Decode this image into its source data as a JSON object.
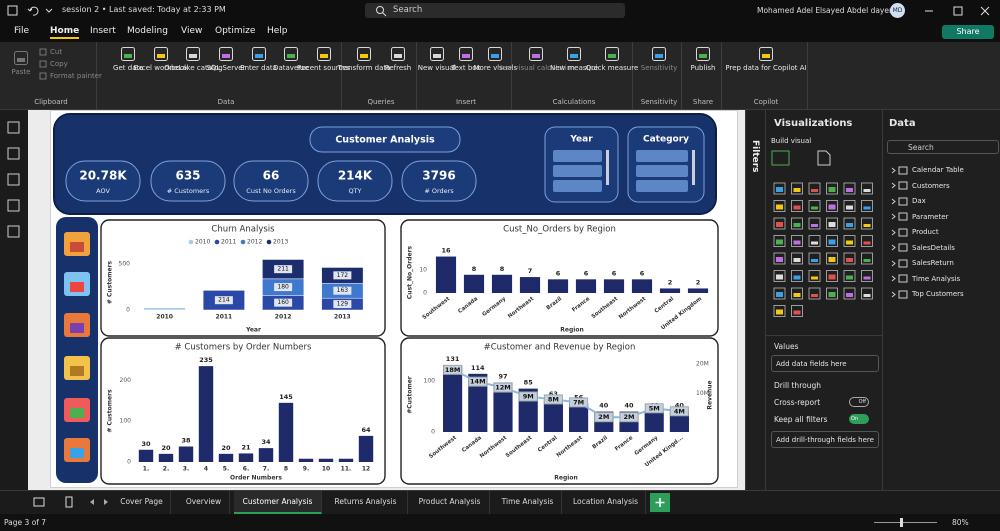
{
  "titlebar": {
    "session": "session 2 • Last saved: Today at 2:33 PM",
    "search": "Search",
    "user": "Mohamed Adel Elsayed Abdel dayem",
    "initials": "MD"
  },
  "menu": {
    "items": [
      "File",
      "Home",
      "Insert",
      "Modeling",
      "View",
      "Optimize",
      "Help"
    ],
    "share": "Share"
  },
  "ribbon": {
    "groups": [
      {
        "label": "Clipboard",
        "buttons": [
          "Paste",
          "Cut",
          "Copy",
          "Format painter"
        ]
      },
      {
        "label": "Data",
        "buttons": [
          "Get data",
          "Excel workbook",
          "OneLake catalog",
          "SQL Server",
          "Enter data",
          "Dataverse",
          "Recent sources"
        ]
      },
      {
        "label": "Queries",
        "buttons": [
          "Transform data",
          "Refresh"
        ]
      },
      {
        "label": "Insert",
        "buttons": [
          "New visual",
          "Text box",
          "More visuals"
        ]
      },
      {
        "label": "Calculations",
        "buttons": [
          "New visual calculation",
          "New measure",
          "Quick measure"
        ]
      },
      {
        "label": "Sensitivity",
        "buttons": [
          "Sensitivity"
        ]
      },
      {
        "label": "Share",
        "buttons": [
          "Publish"
        ]
      },
      {
        "label": "Copilot",
        "buttons": [
          "Prep data for Copilot AI"
        ]
      }
    ]
  },
  "report": {
    "title": "Customer Analysis",
    "kpis": [
      {
        "value": "20.78K",
        "label": "AOV"
      },
      {
        "value": "635",
        "label": "# Customers"
      },
      {
        "value": "66",
        "label": "Cust No Orders"
      },
      {
        "value": "214K",
        "label": "QTY"
      },
      {
        "value": "3796",
        "label": "# Orders"
      }
    ],
    "slicers": [
      "Year",
      "Category"
    ]
  },
  "chart_data": [
    {
      "type": "bar",
      "title": "Churn Analysis",
      "x_label": "Year",
      "y_label": "# Customers",
      "categories": [
        "2010",
        "2011",
        "2012",
        "2013"
      ],
      "series": [
        {
          "name": "2010",
          "color": "#a9c9ee",
          "values": [
            25,
            null,
            null,
            null
          ]
        },
        {
          "name": "2011",
          "color": "#2a48a6",
          "values": [
            null,
            214,
            160,
            129
          ]
        },
        {
          "name": "2012",
          "color": "#3f78cf",
          "values": [
            null,
            null,
            180,
            163
          ]
        },
        {
          "name": "2013",
          "color": "#1c2d6e",
          "values": [
            null,
            null,
            211,
            172
          ]
        }
      ],
      "ylim": [
        0,
        600
      ],
      "yticks": [
        0,
        500
      ],
      "grid": false
    },
    {
      "type": "bar",
      "title": "Cust_No_Orders by Region",
      "x_label": "Region",
      "y_label": "Cust_No_Orders",
      "categories": [
        "Southwest",
        "Canada",
        "Germany",
        "Northeast",
        "Brazil",
        "France",
        "Southeast",
        "Northwest",
        "Central",
        "United Kingdom"
      ],
      "values": [
        16,
        8,
        8,
        7,
        6,
        6,
        6,
        6,
        2,
        2
      ],
      "color": "#1f2a6b",
      "ylim": [
        0,
        18
      ],
      "yticks": [
        0,
        10
      ],
      "grid": false
    },
    {
      "type": "bar",
      "title": "# Customers by Order Numbers",
      "x_label": "Order Numbers",
      "y_label": "# Customers",
      "categories": [
        "1.",
        "2.",
        "3.",
        "4",
        "5.",
        "6.",
        "7.",
        "8",
        "9.",
        "10",
        "11.",
        "12"
      ],
      "values": [
        30,
        20,
        38,
        235,
        20,
        21,
        34,
        145,
        8,
        8,
        8,
        64
      ],
      "color": "#1f2a6b",
      "ylim": [
        0,
        250
      ],
      "yticks": [
        0,
        100,
        200
      ],
      "grid": false
    },
    {
      "type": "combo",
      "title": "#Customer and Revenue by Region",
      "x_label": "Region",
      "categories": [
        "Southwest",
        "Canada",
        "Northwest",
        "Southeast",
        "Central",
        "Northeast",
        "Brazil",
        "France",
        "Germany",
        "United Kingd..."
      ],
      "series": [
        {
          "name": "#Customer",
          "color": "#1f2a6b",
          "values": [
            131,
            114,
            97,
            85,
            63,
            56,
            40,
            40,
            40,
            40
          ]
        },
        {
          "name": "Revenue",
          "color": "#8fb8e0",
          "axis": "y2",
          "values": [
            18000000,
            14000000,
            12000000,
            9000000,
            8000000,
            7000000,
            2000000,
            2000000,
            5000000,
            4000000
          ],
          "value_labels": [
            "18M",
            "14M",
            "12M",
            "9M",
            "8M",
            "7M",
            "2M",
            "2M",
            "5M",
            "4M"
          ]
        }
      ],
      "ylim": [
        0,
        145
      ],
      "yticks": [
        0,
        100
      ],
      "y2lim": [
        -3000000,
        22000000
      ],
      "y2ticks": [
        {
          "value": 10000000,
          "label": "10M"
        },
        {
          "value": 20000000,
          "label": "20M"
        }
      ],
      "grid": false
    }
  ],
  "filters": "Filters",
  "visualizations": {
    "title": "Visualizations",
    "build": "Build visual",
    "values": "Values",
    "add_fields": "Add data fields here",
    "drill": "Drill through",
    "cross": "Cross-report",
    "cross_state": "Off",
    "keep": "Keep all filters",
    "keep_state": "On",
    "add_drill": "Add drill-through fields here"
  },
  "data_pane": {
    "title": "Data",
    "search": "Search",
    "items": [
      "Calendar Table",
      "Customers",
      "Dax",
      "Parameter",
      "Product",
      "SalesDetails",
      "SalesReturn",
      "Time Analysis",
      "Top Customers"
    ]
  },
  "tabs": [
    "Cover Page",
    "Overview",
    "Customer Analysis",
    "Returns Analysis",
    "Product Analysis",
    "Time Analysis",
    "Location Analysis"
  ],
  "status": {
    "page": "Page 3 of 7",
    "zoom": "80%"
  }
}
